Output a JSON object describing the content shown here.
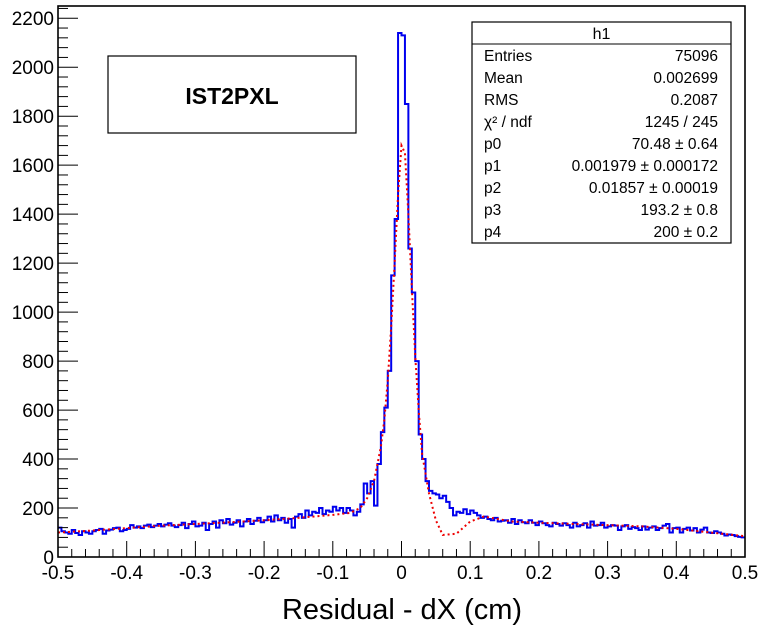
{
  "chart_data": {
    "type": "histogram",
    "xlabel": "Residual - dX (cm)",
    "ylabel": "",
    "xlim": [
      -0.5,
      0.5
    ],
    "ylim": [
      0,
      2250
    ],
    "x_ticks": [
      -0.5,
      -0.4,
      -0.3,
      -0.2,
      -0.1,
      0,
      0.1,
      0.2,
      0.3,
      0.4,
      0.5
    ],
    "x_tick_labels": [
      "-0.5",
      "-0.4",
      "-0.3",
      "-0.2",
      "-0.1",
      "0",
      "0.1",
      "0.2",
      "0.3",
      "0.4",
      "0.5"
    ],
    "y_ticks": [
      0,
      200,
      400,
      600,
      800,
      1000,
      1200,
      1400,
      1600,
      1800,
      2000,
      2200
    ],
    "y_tick_labels": [
      "0",
      "200",
      "400",
      "600",
      "800",
      "1000",
      "1200",
      "1400",
      "1600",
      "1800",
      "2000",
      "2200"
    ],
    "label_box": "IST2PXL",
    "bin_width": 0.005,
    "series": [
      {
        "name": "h1",
        "kind": "step",
        "color": "#0000ee",
        "x_start": -0.5,
        "values": [
          120,
          105,
          100,
          95,
          110,
          98,
          90,
          105,
          100,
          95,
          105,
          110,
          115,
          95,
          108,
          112,
          118,
          120,
          105,
          110,
          115,
          130,
          120,
          125,
          118,
          128,
          132,
          122,
          128,
          135,
          125,
          132,
          138,
          128,
          122,
          130,
          140,
          118,
          135,
          145,
          125,
          128,
          140,
          110,
          135,
          145,
          120,
          150,
          138,
          155,
          132,
          140,
          150,
          125,
          145,
          155,
          135,
          148,
          160,
          142,
          150,
          165,
          145,
          170,
          150,
          160,
          140,
          155,
          120,
          165,
          175,
          160,
          190,
          170,
          185,
          180,
          200,
          175,
          190,
          185,
          205,
          190,
          200,
          180,
          200,
          190,
          170,
          185,
          215,
          300,
          260,
          310,
          210,
          380,
          510,
          610,
          760,
          1150,
          1380,
          2140,
          2130,
          1850,
          1260,
          1080,
          800,
          500,
          400,
          310,
          270,
          260,
          255,
          240,
          250,
          225,
          200,
          170,
          185,
          180,
          195,
          175,
          190,
          180,
          170,
          160,
          165,
          155,
          150,
          160,
          145,
          148,
          150,
          140,
          155,
          135,
          150,
          142,
          138,
          150,
          140,
          130,
          145,
          138,
          130,
          125,
          140,
          135,
          128,
          138,
          130,
          120,
          140,
          125,
          130,
          138,
          120,
          145,
          128,
          130,
          140,
          120,
          125,
          130,
          128,
          110,
          125,
          130,
          115,
          122,
          118,
          110,
          125,
          112,
          120,
          125,
          110,
          118,
          128,
          135,
          100,
          118,
          120,
          100,
          115,
          120,
          108,
          118,
          100,
          112,
          120,
          100,
          98,
          105,
          100,
          95,
          88,
          92,
          90,
          85,
          82,
          80
        ]
      },
      {
        "name": "fit",
        "kind": "curve",
        "color": "#ee0000",
        "style": "dotted",
        "x": [
          -0.5,
          -0.45,
          -0.4,
          -0.35,
          -0.3,
          -0.25,
          -0.2,
          -0.15,
          -0.1,
          -0.075,
          -0.06,
          -0.05,
          -0.04,
          -0.03,
          -0.025,
          -0.02,
          -0.015,
          -0.01,
          -0.005,
          0,
          0.005,
          0.01,
          0.015,
          0.02,
          0.025,
          0.03,
          0.04,
          0.05,
          0.06,
          0.08,
          0.1,
          0.12,
          0.14,
          0.16,
          0.2,
          0.25,
          0.3,
          0.35,
          0.4,
          0.45,
          0.5
        ],
        "y": [
          100,
          108,
          118,
          128,
          135,
          142,
          150,
          160,
          172,
          180,
          200,
          240,
          310,
          450,
          560,
          720,
          940,
          1200,
          1480,
          1680,
          1650,
          1400,
          1100,
          820,
          600,
          420,
          260,
          150,
          90,
          95,
          145,
          165,
          155,
          145,
          140,
          135,
          130,
          125,
          115,
          100,
          85
        ]
      }
    ],
    "stats_box": {
      "title": "h1",
      "rows": [
        {
          "label": "Entries",
          "value": "75096"
        },
        {
          "label": "Mean",
          "value": "0.002699"
        },
        {
          "label": "RMS",
          "value": "0.2087"
        },
        {
          "label": "χ² / ndf",
          "value": "1245 / 245"
        },
        {
          "label": "p0",
          "value": "70.48 ± 0.64"
        },
        {
          "label": "p1",
          "value": "0.001979 ± 0.000172"
        },
        {
          "label": "p2",
          "value": "0.01857 ± 0.00019"
        },
        {
          "label": "p3",
          "value": "193.2 ± 0.8"
        },
        {
          "label": "p4",
          "value": "200 ± 0.2"
        }
      ]
    }
  }
}
